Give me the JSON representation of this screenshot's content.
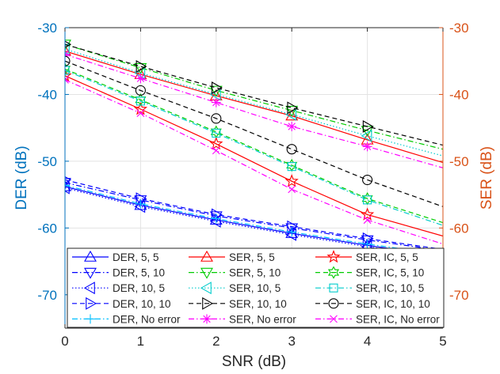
{
  "chart_data": {
    "type": "line",
    "xlabel": "SNR (dB)",
    "ylabel_left": "DER (dB)",
    "ylabel_right": "SER (dB)",
    "xlim": [
      0,
      5
    ],
    "ylim_left": [
      -75,
      -30
    ],
    "ylim_right": [
      -75,
      -30
    ],
    "xticks": [
      0,
      1,
      2,
      3,
      4,
      5
    ],
    "yticks_left": [
      -30,
      -40,
      -50,
      -60,
      -70
    ],
    "yticks_right": [
      -30,
      -40,
      -50,
      -60,
      -70
    ],
    "grid": true,
    "legend_position": "bottom, inside plot, 3 columns",
    "colors": {
      "left_axis": "#0072bd",
      "right_axis": "#d95319"
    },
    "x": [
      0,
      1,
      2,
      3,
      4,
      5
    ],
    "series": [
      {
        "name": "DER, 5, 5",
        "color": "#0000ff",
        "dash": "solid",
        "marker": "triangle-up",
        "values": [
          -53.8,
          -56.6,
          -58.8,
          -60.8,
          -62.6,
          -64.2
        ]
      },
      {
        "name": "DER, 5, 10",
        "color": "#0000ff",
        "dash": "dashdot",
        "marker": "triangle-down",
        "values": [
          -53.2,
          -55.8,
          -58.2,
          -60.0,
          -61.8,
          -63.4
        ]
      },
      {
        "name": "DER, 10, 5",
        "color": "#0000ff",
        "dash": "dotted",
        "marker": "triangle-left",
        "values": [
          -54.0,
          -56.8,
          -59.0,
          -61.0,
          -62.8,
          -64.4
        ]
      },
      {
        "name": "DER, 10, 10",
        "color": "#0000ff",
        "dash": "dashed",
        "marker": "triangle-right",
        "values": [
          -52.8,
          -55.6,
          -58.0,
          -59.8,
          -61.6,
          -63.2
        ]
      },
      {
        "name": "DER, No error",
        "color": "#00bfff",
        "dash": "dashdot",
        "marker": "plus",
        "values": [
          -53.6,
          -56.4,
          -58.6,
          -60.6,
          -62.4,
          -64.0
        ]
      },
      {
        "name": "SER, 5, 5",
        "color": "#ff0000",
        "dash": "solid",
        "marker": "triangle-up",
        "values": [
          -33.5,
          -37.0,
          -40.2,
          -43.2,
          -46.8,
          -50.2
        ]
      },
      {
        "name": "SER, 5, 10",
        "color": "#00cc00",
        "dash": "dashdot",
        "marker": "triangle-down",
        "values": [
          -32.5,
          -36.0,
          -39.4,
          -42.4,
          -45.4,
          -48.2
        ]
      },
      {
        "name": "SER, 10, 5",
        "color": "#00cccc",
        "dash": "dotted",
        "marker": "triangle-left",
        "values": [
          -33.2,
          -36.8,
          -40.0,
          -43.0,
          -46.2,
          -49.2
        ]
      },
      {
        "name": "SER, 10, 10",
        "color": "#000000",
        "dash": "dashed",
        "marker": "triangle-right",
        "values": [
          -32.5,
          -35.8,
          -39.0,
          -42.0,
          -44.8,
          -47.6
        ]
      },
      {
        "name": "SER, No error",
        "color": "#ff00ff",
        "dash": "dashdot",
        "marker": "asterisk",
        "values": [
          -34.0,
          -37.6,
          -41.2,
          -44.8,
          -47.8,
          -51.0
        ]
      },
      {
        "name": "SER, IC, 5, 5",
        "color": "#ff0000",
        "dash": "solid",
        "marker": "star",
        "values": [
          -37.2,
          -42.2,
          -47.4,
          -53.0,
          -58.0,
          -61.2
        ]
      },
      {
        "name": "SER, IC, 5, 10",
        "color": "#00cc00",
        "dash": "dashed",
        "marker": "hexagram",
        "values": [
          -36.2,
          -40.8,
          -45.6,
          -50.6,
          -55.6,
          -59.2
        ]
      },
      {
        "name": "SER, IC, 10, 5",
        "color": "#00cccc",
        "dash": "dashdot",
        "marker": "square",
        "values": [
          -36.4,
          -41.0,
          -45.8,
          -50.8,
          -55.8,
          -59.6
        ]
      },
      {
        "name": "SER, IC, 10, 10",
        "color": "#000000",
        "dash": "dashed",
        "marker": "circle",
        "values": [
          -35.0,
          -39.4,
          -43.6,
          -48.2,
          -52.8,
          -56.8
        ]
      },
      {
        "name": "SER, IC, No error",
        "color": "#ff00ff",
        "dash": "dashdot",
        "marker": "x",
        "values": [
          -37.8,
          -42.8,
          -48.4,
          -54.2,
          -58.8,
          -62.4
        ]
      }
    ]
  }
}
